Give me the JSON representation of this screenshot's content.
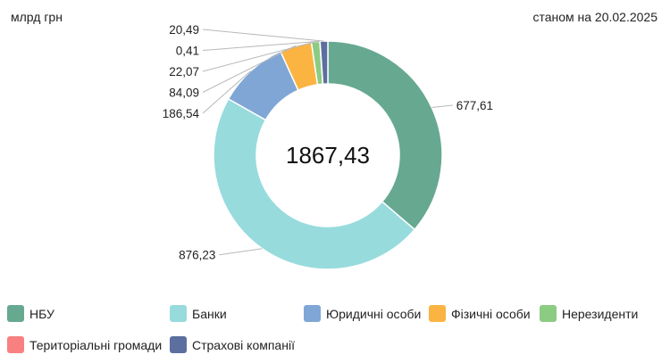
{
  "header": {
    "unit": "млрд грн",
    "as_of": "станом на 20.02.2025"
  },
  "chart_data": {
    "type": "pie",
    "variant": "donut",
    "center_label": "1867,43",
    "series": [
      {
        "name": "НБУ",
        "value": 677.61,
        "label": "677,61",
        "color": "#67a891"
      },
      {
        "name": "Банки",
        "value": 876.23,
        "label": "876,23",
        "color": "#97dbdd"
      },
      {
        "name": "Юридичні особи",
        "value": 186.54,
        "label": "186,54",
        "color": "#80a6d6"
      },
      {
        "name": "Фізичні особи",
        "value": 84.09,
        "label": "84,09",
        "color": "#fbb442"
      },
      {
        "name": "Нерезиденти",
        "value": 22.07,
        "label": "22,07",
        "color": "#8ccc82"
      },
      {
        "name": "Територіальні громади",
        "value": 0.41,
        "label": "0,41",
        "color": "#f98080"
      },
      {
        "name": "Страхові компанії",
        "value": 20.49,
        "label": "20,49",
        "color": "#5c6f9e"
      }
    ],
    "legend_position": "bottom"
  }
}
